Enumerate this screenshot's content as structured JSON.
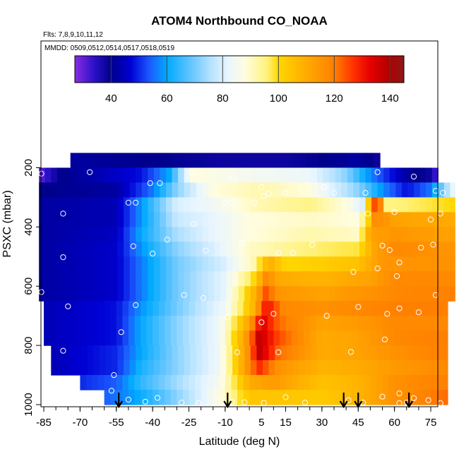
{
  "chart_data": {
    "type": "heatmap",
    "title": "ATOM4 Northbound CO_NOAA",
    "flights_note": "Flts: 7,8,9,10,11,12",
    "dates_note": "MMDD: 0509,0512,0514,0517,0518,0519",
    "xlabel": "Latitude (deg N)",
    "ylabel": "PSXC (mbar)",
    "xlim": [
      -87,
      85
    ],
    "ylim": [
      1000,
      100
    ],
    "x_ticks": [
      -85,
      -70,
      -55,
      -40,
      -25,
      -10,
      5,
      15,
      30,
      45,
      60,
      75
    ],
    "x_tick_labels": [
      "-85",
      "-70",
      "-55",
      "-40",
      "-25",
      "-10",
      "5",
      "15",
      "30",
      "45",
      "60",
      "75"
    ],
    "y_ticks": [
      200,
      400,
      600,
      800,
      1000
    ],
    "y_tick_labels": [
      "200",
      "400",
      "600",
      "800",
      "1000"
    ],
    "colorbar": {
      "range": [
        27,
        145
      ],
      "ticks": [
        40,
        60,
        80,
        100,
        120,
        140
      ],
      "tick_labels": [
        "40",
        "60",
        "80",
        "100",
        "120",
        "140"
      ],
      "stops": [
        [
          27,
          "#8a2be2"
        ],
        [
          34,
          "#2a10c8"
        ],
        [
          40,
          "#00008b"
        ],
        [
          47,
          "#0000d5"
        ],
        [
          54,
          "#1c5cff"
        ],
        [
          60,
          "#00aaff"
        ],
        [
          68,
          "#5cc3ff"
        ],
        [
          76,
          "#b8e3ff"
        ],
        [
          82,
          "#e9f6ff"
        ],
        [
          88,
          "#fffde0"
        ],
        [
          96,
          "#fff27a"
        ],
        [
          100,
          "#ffd700"
        ],
        [
          110,
          "#ffab00"
        ],
        [
          120,
          "#ff8000"
        ],
        [
          127,
          "#ff3000"
        ],
        [
          133,
          "#e50000"
        ],
        [
          140,
          "#b00000"
        ],
        [
          145,
          "#8b1a1a"
        ]
      ]
    },
    "pressure_levels": [
      175,
      225,
      275,
      325,
      375,
      425,
      475,
      525,
      575,
      625,
      675,
      725,
      775,
      825,
      875,
      925,
      975
    ],
    "rows": [
      {
        "p": 175,
        "lat0": -74,
        "lat1": 54,
        "nodes": [
          [
            -74,
            42
          ],
          [
            -40,
            40
          ],
          [
            -10,
            38
          ],
          [
            15,
            38
          ],
          [
            45,
            42
          ],
          [
            54,
            38
          ]
        ]
      },
      {
        "p": 225,
        "lat0": -87,
        "lat1": 78,
        "nodes": [
          [
            -87,
            30
          ],
          [
            -78,
            40
          ],
          [
            -45,
            48
          ],
          [
            -33,
            60
          ],
          [
            -24,
            88
          ],
          [
            0,
            85
          ],
          [
            25,
            83
          ],
          [
            40,
            72
          ],
          [
            48,
            60
          ],
          [
            55,
            52
          ],
          [
            65,
            42
          ],
          [
            75,
            38
          ],
          [
            78,
            30
          ]
        ]
      },
      {
        "p": 275,
        "lat0": -87,
        "lat1": 85,
        "nodes": [
          [
            -87,
            40
          ],
          [
            -55,
            42
          ],
          [
            -40,
            56
          ],
          [
            -30,
            72
          ],
          [
            -15,
            88
          ],
          [
            5,
            92
          ],
          [
            25,
            88
          ],
          [
            45,
            72
          ],
          [
            55,
            58
          ],
          [
            65,
            48
          ],
          [
            75,
            56
          ],
          [
            85,
            85
          ]
        ]
      },
      {
        "p": 325,
        "lat0": -87,
        "lat1": 85,
        "nodes": [
          [
            -87,
            42
          ],
          [
            -55,
            44
          ],
          [
            -45,
            58
          ],
          [
            -30,
            80
          ],
          [
            -15,
            84
          ],
          [
            5,
            92
          ],
          [
            25,
            95
          ],
          [
            40,
            88
          ],
          [
            47,
            80
          ],
          [
            50,
            110
          ],
          [
            53,
            135
          ],
          [
            56,
            95
          ],
          [
            70,
            97
          ],
          [
            85,
            100
          ]
        ]
      },
      {
        "p": 375,
        "lat0": -87,
        "lat1": 85,
        "nodes": [
          [
            -87,
            42
          ],
          [
            -55,
            44
          ],
          [
            -45,
            58
          ],
          [
            -30,
            78
          ],
          [
            -15,
            82
          ],
          [
            0,
            88
          ],
          [
            25,
            90
          ],
          [
            45,
            88
          ],
          [
            49,
            100
          ],
          [
            52,
            118
          ],
          [
            60,
            112
          ],
          [
            85,
            110
          ]
        ]
      },
      {
        "p": 425,
        "lat0": -87,
        "lat1": 85,
        "nodes": [
          [
            -87,
            42
          ],
          [
            -55,
            45
          ],
          [
            -45,
            60
          ],
          [
            -30,
            75
          ],
          [
            -15,
            82
          ],
          [
            0,
            88
          ],
          [
            25,
            92
          ],
          [
            45,
            90
          ],
          [
            50,
            112
          ],
          [
            60,
            115
          ],
          [
            85,
            112
          ]
        ]
      },
      {
        "p": 475,
        "lat0": -87,
        "lat1": 85,
        "nodes": [
          [
            -87,
            42
          ],
          [
            -55,
            46
          ],
          [
            -45,
            58
          ],
          [
            -30,
            72
          ],
          [
            -15,
            80
          ],
          [
            0,
            90
          ],
          [
            25,
            96
          ],
          [
            45,
            98
          ],
          [
            52,
            112
          ],
          [
            60,
            118
          ],
          [
            85,
            115
          ]
        ]
      },
      {
        "p": 525,
        "lat0": -87,
        "lat1": 85,
        "nodes": [
          [
            -87,
            42
          ],
          [
            -55,
            46
          ],
          [
            -45,
            56
          ],
          [
            -30,
            70
          ],
          [
            -10,
            80
          ],
          [
            2,
            92
          ],
          [
            8,
            110
          ],
          [
            15,
            100
          ],
          [
            30,
            102
          ],
          [
            45,
            105
          ],
          [
            55,
            115
          ],
          [
            85,
            116
          ]
        ]
      },
      {
        "p": 575,
        "lat0": -87,
        "lat1": 85,
        "nodes": [
          [
            -87,
            42
          ],
          [
            -55,
            46
          ],
          [
            -45,
            56
          ],
          [
            -30,
            70
          ],
          [
            -10,
            82
          ],
          [
            2,
            100
          ],
          [
            7,
            118
          ],
          [
            12,
            110
          ],
          [
            30,
            108
          ],
          [
            50,
            112
          ],
          [
            60,
            118
          ],
          [
            85,
            118
          ]
        ]
      },
      {
        "p": 625,
        "lat0": -87,
        "lat1": 85,
        "nodes": [
          [
            -87,
            42
          ],
          [
            -55,
            46
          ],
          [
            -45,
            56
          ],
          [
            -30,
            70
          ],
          [
            -10,
            82
          ],
          [
            2,
            108
          ],
          [
            7,
            125
          ],
          [
            12,
            115
          ],
          [
            30,
            112
          ],
          [
            50,
            116
          ],
          [
            60,
            118
          ],
          [
            85,
            120
          ]
        ]
      },
      {
        "p": 675,
        "lat0": -85,
        "lat1": 82,
        "nodes": [
          [
            -85,
            44
          ],
          [
            -55,
            48
          ],
          [
            -45,
            58
          ],
          [
            -30,
            70
          ],
          [
            -10,
            84
          ],
          [
            2,
            108
          ],
          [
            7,
            132
          ],
          [
            14,
            118
          ],
          [
            30,
            116
          ],
          [
            45,
            118
          ],
          [
            60,
            120
          ],
          [
            82,
            120
          ]
        ]
      },
      {
        "p": 725,
        "lat0": -85,
        "lat1": 82,
        "nodes": [
          [
            -85,
            44
          ],
          [
            -55,
            48
          ],
          [
            -45,
            60
          ],
          [
            -30,
            72
          ],
          [
            -12,
            84
          ],
          [
            0,
            112
          ],
          [
            5,
            135
          ],
          [
            12,
            122
          ],
          [
            30,
            112
          ],
          [
            45,
            114
          ],
          [
            60,
            118
          ],
          [
            82,
            118
          ]
        ]
      },
      {
        "p": 775,
        "lat0": -85,
        "lat1": 82,
        "nodes": [
          [
            -85,
            44
          ],
          [
            -55,
            48
          ],
          [
            -45,
            60
          ],
          [
            -30,
            72
          ],
          [
            -12,
            84
          ],
          [
            0,
            118
          ],
          [
            4,
            138
          ],
          [
            12,
            125
          ],
          [
            30,
            110
          ],
          [
            45,
            112
          ],
          [
            60,
            118
          ],
          [
            82,
            120
          ]
        ]
      },
      {
        "p": 825,
        "lat0": -82,
        "lat1": 82,
        "nodes": [
          [
            -82,
            44
          ],
          [
            -55,
            50
          ],
          [
            -45,
            60
          ],
          [
            -30,
            72
          ],
          [
            -12,
            84
          ],
          [
            0,
            118
          ],
          [
            4,
            138
          ],
          [
            12,
            122
          ],
          [
            30,
            110
          ],
          [
            45,
            112
          ],
          [
            60,
            116
          ],
          [
            82,
            120
          ]
        ]
      },
      {
        "p": 875,
        "lat0": -82,
        "lat1": 82,
        "nodes": [
          [
            -82,
            44
          ],
          [
            -55,
            50
          ],
          [
            -45,
            62
          ],
          [
            -30,
            72
          ],
          [
            -12,
            84
          ],
          [
            0,
            118
          ],
          [
            4,
            128
          ],
          [
            12,
            116
          ],
          [
            30,
            108
          ],
          [
            45,
            110
          ],
          [
            60,
            114
          ],
          [
            82,
            118
          ]
        ]
      },
      {
        "p": 925,
        "lat0": -70,
        "lat1": 82,
        "nodes": [
          [
            -70,
            50
          ],
          [
            -55,
            54
          ],
          [
            -45,
            64
          ],
          [
            -30,
            74
          ],
          [
            -12,
            86
          ],
          [
            0,
            110
          ],
          [
            10,
            114
          ],
          [
            30,
            105
          ],
          [
            45,
            108
          ],
          [
            60,
            116
          ],
          [
            82,
            120
          ]
        ]
      },
      {
        "p": 975,
        "lat0": -60,
        "lat1": 82,
        "nodes": [
          [
            -60,
            54
          ],
          [
            -50,
            58
          ],
          [
            -40,
            64
          ],
          [
            -25,
            76
          ],
          [
            -12,
            88
          ],
          [
            0,
            104
          ],
          [
            15,
            104
          ],
          [
            30,
            103
          ],
          [
            45,
            108
          ],
          [
            60,
            116
          ],
          [
            82,
            122
          ]
        ]
      }
    ],
    "samples": [
      [
        -86,
        220
      ],
      [
        -66,
        215
      ],
      [
        -41,
        252
      ],
      [
        -37,
        252
      ],
      [
        -24,
        215
      ],
      [
        -7,
        235
      ],
      [
        5,
        265
      ],
      [
        8,
        288
      ],
      [
        31,
        265
      ],
      [
        48,
        285
      ],
      [
        53,
        215
      ],
      [
        68,
        230
      ],
      [
        77,
        278
      ],
      [
        80,
        285
      ],
      [
        -77,
        355
      ],
      [
        -50,
        318
      ],
      [
        -47,
        318
      ],
      [
        -23,
        390
      ],
      [
        -10,
        318
      ],
      [
        -7,
        318
      ],
      [
        2,
        318
      ],
      [
        6,
        295
      ],
      [
        15,
        285
      ],
      [
        35,
        285
      ],
      [
        49,
        355
      ],
      [
        60,
        350
      ],
      [
        75,
        375
      ],
      [
        79,
        355
      ],
      [
        -48,
        465
      ],
      [
        -40,
        490
      ],
      [
        -34,
        443
      ],
      [
        -18,
        480
      ],
      [
        -3,
        455
      ],
      [
        12,
        488
      ],
      [
        18,
        488
      ],
      [
        26,
        460
      ],
      [
        55,
        463
      ],
      [
        58,
        478
      ],
      [
        62,
        520
      ],
      [
        71,
        470
      ],
      [
        76,
        460
      ],
      [
        -77,
        502
      ],
      [
        -86,
        620
      ],
      [
        -75,
        668
      ],
      [
        -27,
        630
      ],
      [
        -19,
        640
      ],
      [
        -47,
        664
      ],
      [
        -9,
        705
      ],
      [
        5,
        722
      ],
      [
        10,
        693
      ],
      [
        32,
        700
      ],
      [
        45,
        670
      ],
      [
        57,
        693
      ],
      [
        62,
        675
      ],
      [
        70,
        688
      ],
      [
        77,
        630
      ],
      [
        -53,
        755
      ],
      [
        -77,
        818
      ],
      [
        -5,
        823
      ],
      [
        12,
        823
      ],
      [
        42,
        822
      ],
      [
        56,
        780
      ],
      [
        61,
        566
      ],
      [
        43,
        552
      ],
      [
        53,
        540
      ],
      [
        -56,
        900
      ],
      [
        -57,
        953
      ],
      [
        -50,
        983
      ],
      [
        -43,
        990
      ],
      [
        -38,
        977
      ],
      [
        -28,
        993
      ],
      [
        -21,
        995
      ],
      [
        -11,
        985
      ],
      [
        -7,
        990
      ],
      [
        -2,
        992
      ],
      [
        6,
        994
      ],
      [
        15,
        975
      ],
      [
        23,
        993
      ],
      [
        41,
        985
      ],
      [
        47,
        993
      ],
      [
        55,
        973
      ],
      [
        62,
        995
      ],
      [
        68,
        978
      ],
      [
        74,
        985
      ],
      [
        79,
        995
      ],
      [
        65,
        993
      ],
      [
        62,
        962
      ]
    ],
    "markers": [
      -54,
      -9,
      39,
      45,
      66
    ]
  }
}
